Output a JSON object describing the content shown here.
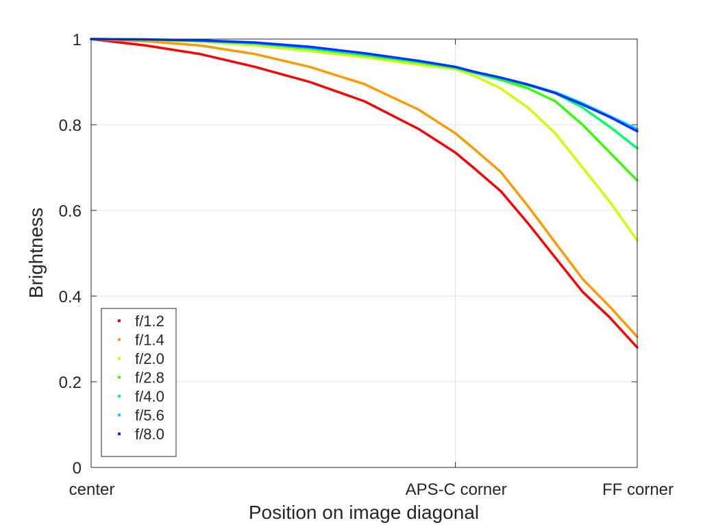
{
  "chart_data": {
    "type": "scatter",
    "title": "",
    "xlabel": "Position on image diagonal",
    "ylabel": "Brightness",
    "xlim": [
      0,
      1
    ],
    "ylim": [
      0,
      1
    ],
    "x_ticks": [
      {
        "value": 0,
        "label": "center"
      },
      {
        "value": 0.667,
        "label": "APS-C corner"
      },
      {
        "value": 1,
        "label": "FF corner"
      }
    ],
    "y_ticks": [
      {
        "value": 0,
        "label": "0"
      },
      {
        "value": 0.2,
        "label": "0.2"
      },
      {
        "value": 0.4,
        "label": "0.4"
      },
      {
        "value": 0.6,
        "label": "0.6"
      },
      {
        "value": 0.8,
        "label": "0.8"
      },
      {
        "value": 1,
        "label": "1"
      }
    ],
    "grid": true,
    "legend_position": "bottom-left",
    "x": [
      0,
      0.1,
      0.2,
      0.3,
      0.4,
      0.5,
      0.6,
      0.667,
      0.7,
      0.75,
      0.8,
      0.85,
      0.9,
      0.95,
      1.0
    ],
    "series": [
      {
        "name": "f/1.2",
        "color": "#ff0000",
        "values": [
          1.0,
          0.985,
          0.965,
          0.935,
          0.9,
          0.855,
          0.79,
          0.735,
          0.7,
          0.645,
          0.57,
          0.49,
          0.41,
          0.35,
          0.28
        ]
      },
      {
        "name": "f/1.4",
        "color": "#ff9900",
        "values": [
          1.0,
          0.995,
          0.985,
          0.965,
          0.935,
          0.895,
          0.835,
          0.78,
          0.745,
          0.69,
          0.61,
          0.525,
          0.44,
          0.375,
          0.305
        ]
      },
      {
        "name": "f/2.0",
        "color": "#ccff00",
        "values": [
          1.0,
          0.998,
          0.994,
          0.985,
          0.972,
          0.958,
          0.94,
          0.93,
          0.915,
          0.885,
          0.84,
          0.78,
          0.7,
          0.62,
          0.53
        ]
      },
      {
        "name": "f/2.8",
        "color": "#33ff00",
        "values": [
          1.0,
          0.999,
          0.996,
          0.99,
          0.978,
          0.963,
          0.946,
          0.933,
          0.922,
          0.905,
          0.885,
          0.855,
          0.8,
          0.735,
          0.67
        ]
      },
      {
        "name": "f/4.0",
        "color": "#00ff66",
        "values": [
          1.0,
          0.999,
          0.996,
          0.99,
          0.978,
          0.963,
          0.946,
          0.933,
          0.922,
          0.907,
          0.892,
          0.874,
          0.84,
          0.795,
          0.745
        ]
      },
      {
        "name": "f/5.6",
        "color": "#00ccff",
        "values": [
          1.0,
          0.999,
          0.996,
          0.99,
          0.98,
          0.966,
          0.949,
          0.935,
          0.924,
          0.91,
          0.894,
          0.876,
          0.85,
          0.82,
          0.79
        ]
      },
      {
        "name": "f/8.0",
        "color": "#0033ff",
        "values": [
          1.0,
          0.999,
          0.997,
          0.992,
          0.982,
          0.967,
          0.949,
          0.935,
          0.924,
          0.91,
          0.894,
          0.874,
          0.847,
          0.818,
          0.785
        ]
      }
    ]
  }
}
